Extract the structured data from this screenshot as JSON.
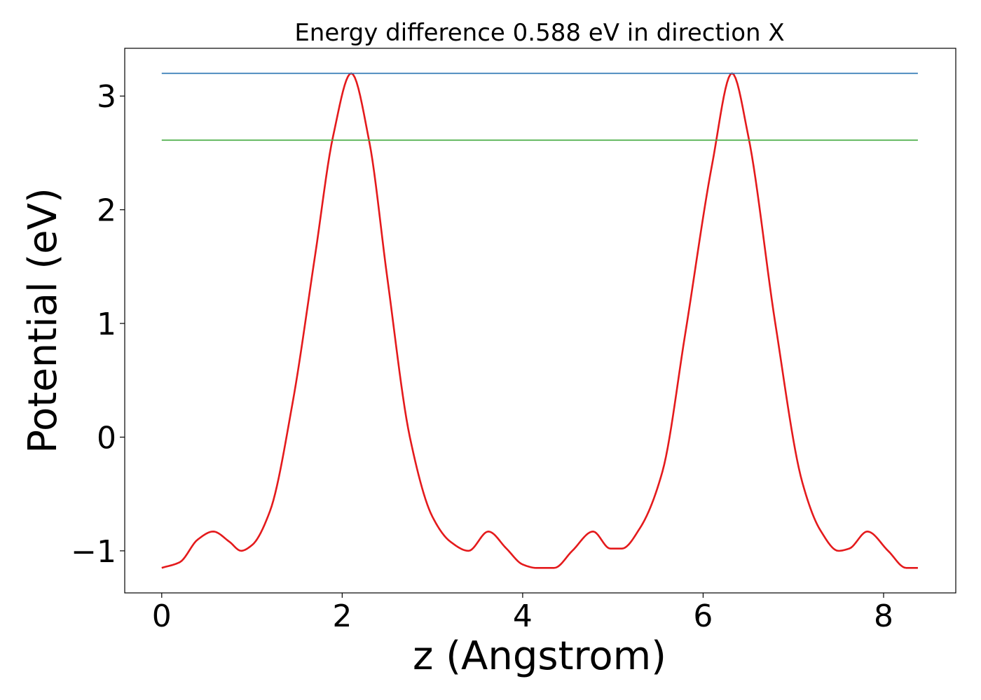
{
  "chart_data": {
    "type": "line",
    "title": "Energy difference 0.588 eV in direction X",
    "xlabel": "z (Angstrom)",
    "ylabel": "Potential (eV)",
    "xlim": [
      -0.41,
      8.8
    ],
    "ylim": [
      -1.37,
      3.42
    ],
    "xticks": [
      0,
      2,
      4,
      6,
      8
    ],
    "xtick_labels": [
      "0",
      "2",
      "4",
      "6",
      "8"
    ],
    "yticks": [
      -1,
      0,
      1,
      2,
      3
    ],
    "ytick_labels": [
      "−1",
      "0",
      "1",
      "2",
      "3"
    ],
    "grid": false,
    "colors": {
      "potential": "#e41a1c",
      "max_line": "#377eb8",
      "second_line": "#4daf4a"
    },
    "series": [
      {
        "color": "#e41a1c",
        "x": [
          0.0,
          0.2,
          0.4,
          0.57,
          0.75,
          0.88,
          1.0,
          1.2,
          1.45,
          1.7,
          1.9,
          2.1,
          2.3,
          2.5,
          2.75,
          3.0,
          3.2,
          3.4,
          3.62,
          3.82,
          4.0,
          4.15,
          4.35,
          4.55,
          4.78,
          4.97,
          5.1,
          5.3,
          5.55,
          5.8,
          6.1,
          6.32,
          6.5,
          6.8,
          7.1,
          7.3,
          7.5,
          7.62,
          7.82,
          8.05,
          8.25,
          8.38
        ],
        "y": [
          -1.15,
          -1.1,
          -0.9,
          -0.83,
          -0.92,
          -1.0,
          -0.95,
          -0.65,
          0.3,
          1.6,
          2.65,
          3.2,
          2.6,
          1.4,
          0.0,
          -0.7,
          -0.92,
          -1.0,
          -0.83,
          -0.98,
          -1.12,
          -1.15,
          -1.15,
          -1.0,
          -0.83,
          -0.98,
          -0.98,
          -0.8,
          -0.3,
          0.9,
          2.4,
          3.2,
          2.65,
          1.0,
          -0.4,
          -0.82,
          -1.0,
          -0.98,
          -0.83,
          -1.0,
          -1.15,
          -1.15
        ]
      },
      {
        "color": "#377eb8",
        "x": [
          0.0,
          8.38
        ],
        "y": [
          3.2,
          3.2
        ]
      },
      {
        "color": "#4daf4a",
        "x": [
          0.0,
          8.38
        ],
        "y": [
          2.612,
          2.612
        ]
      }
    ]
  }
}
